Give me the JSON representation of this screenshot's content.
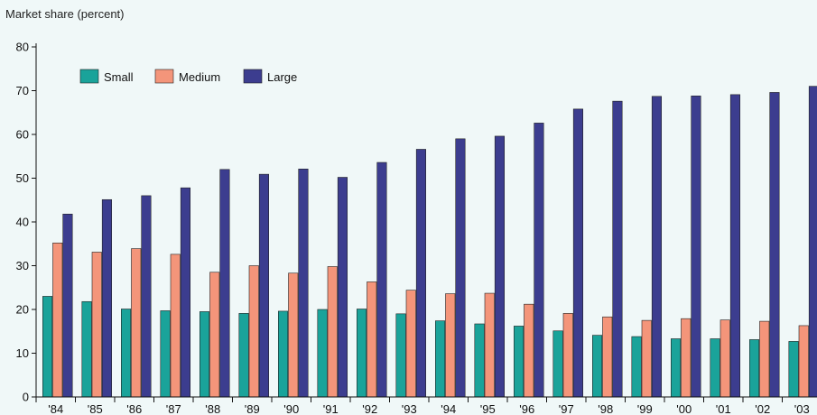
{
  "chart_data": {
    "type": "bar",
    "title": "",
    "ylabel": "Market share (percent)",
    "xlabel": "",
    "ylim": [
      0,
      80
    ],
    "yticks": [
      0,
      10,
      20,
      30,
      40,
      50,
      60,
      70,
      80
    ],
    "grid": false,
    "legend_position": "top-left",
    "categories": [
      "'84",
      "'85",
      "'86",
      "'87",
      "'88",
      "'89",
      "'90",
      "'91",
      "'92",
      "'93",
      "'94",
      "'95",
      "'96",
      "'97",
      "'98",
      "'99",
      "'00",
      "'01",
      "'02",
      "'03"
    ],
    "series": [
      {
        "name": "Small",
        "color": "#1aa39a",
        "values": [
          23.0,
          21.8,
          20.1,
          19.7,
          19.5,
          19.1,
          19.6,
          20.0,
          20.1,
          19.0,
          17.4,
          16.7,
          16.2,
          15.1,
          14.1,
          13.8,
          13.3,
          13.3,
          13.1,
          12.7
        ]
      },
      {
        "name": "Medium",
        "color": "#f4957a",
        "values": [
          35.2,
          33.1,
          33.9,
          32.6,
          28.5,
          30.0,
          28.3,
          29.8,
          26.3,
          24.4,
          23.6,
          23.7,
          21.2,
          19.1,
          18.3,
          17.5,
          17.9,
          17.6,
          17.3,
          16.3
        ]
      },
      {
        "name": "Large",
        "color": "#3c3d8f",
        "values": [
          41.8,
          45.1,
          46.0,
          47.8,
          52.0,
          50.9,
          52.1,
          50.2,
          53.6,
          56.6,
          59.0,
          59.6,
          62.6,
          65.8,
          67.6,
          68.7,
          68.8,
          69.1,
          69.6,
          71.0
        ]
      }
    ]
  }
}
